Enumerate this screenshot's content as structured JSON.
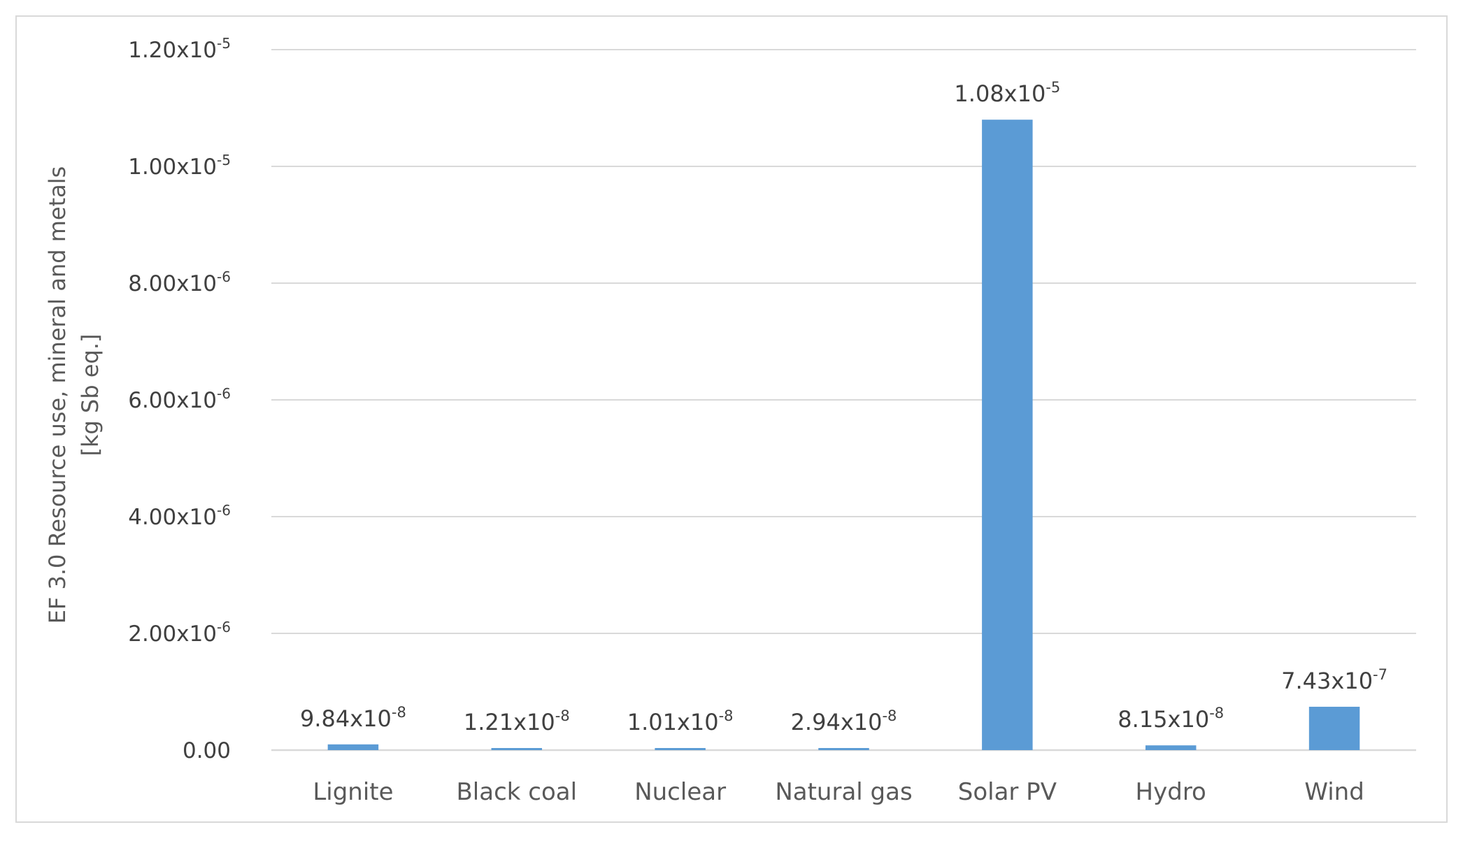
{
  "chart_data": {
    "type": "bar",
    "categories": [
      "Lignite",
      "Black coal",
      "Nuclear",
      "Natural gas",
      "Solar PV",
      "Hydro",
      "Wind"
    ],
    "values": [
      9.84e-08,
      1.21e-08,
      1.01e-08,
      2.94e-08,
      1.08e-05,
      8.15e-08,
      7.43e-07
    ],
    "data_labels": [
      {
        "mantissa": "9.84x10",
        "exponent": "-8"
      },
      {
        "mantissa": "1.21x10",
        "exponent": "-8"
      },
      {
        "mantissa": "1.01x10",
        "exponent": "-8"
      },
      {
        "mantissa": "2.94x10",
        "exponent": "-8"
      },
      {
        "mantissa": "1.08x10",
        "exponent": "-5"
      },
      {
        "mantissa": "8.15x10",
        "exponent": "-8"
      },
      {
        "mantissa": "7.43x10",
        "exponent": "-7"
      }
    ],
    "ylim": [
      0,
      1.2e-05
    ],
    "yticks": [
      {
        "value": 0,
        "mantissa": "0.00",
        "exponent": ""
      },
      {
        "value": 2e-06,
        "mantissa": "2.00x10",
        "exponent": "-6"
      },
      {
        "value": 4e-06,
        "mantissa": "4.00x10",
        "exponent": "-6"
      },
      {
        "value": 6e-06,
        "mantissa": "6.00x10",
        "exponent": "-6"
      },
      {
        "value": 8e-06,
        "mantissa": "8.00x10",
        "exponent": "-6"
      },
      {
        "value": 1e-05,
        "mantissa": "1.00x10",
        "exponent": "-5"
      },
      {
        "value": 1.2e-05,
        "mantissa": "1.20x10",
        "exponent": "-5"
      }
    ],
    "ylabel_lines": [
      "EF 3.0 Resource use, mineral and metals",
      "[kg Sb eq.]"
    ],
    "xlabel": "",
    "title": "",
    "grid": true,
    "legend": "none",
    "bar_color": "#5b9bd5"
  }
}
